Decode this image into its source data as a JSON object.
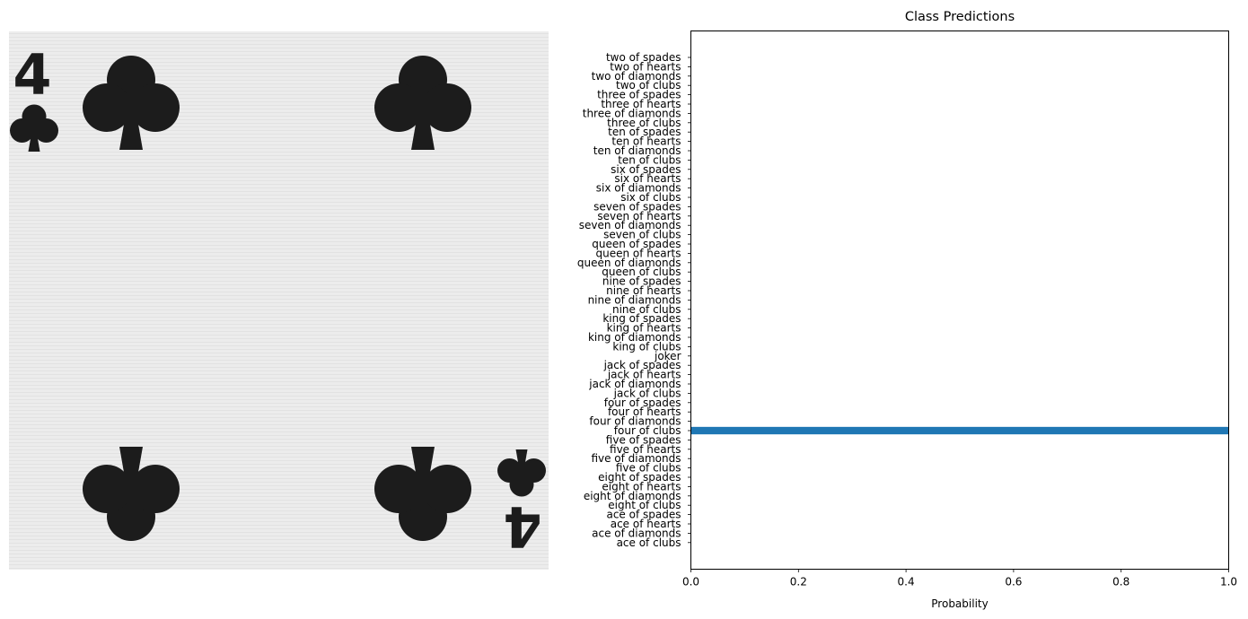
{
  "card_image": {
    "rank": "4",
    "colors": {
      "ink": "#1c1c1c",
      "paper": "#ececec"
    }
  },
  "chart_data": {
    "type": "bar",
    "orientation": "horizontal",
    "title": "Class Predictions",
    "xlabel": "Probability",
    "ylabel": "",
    "xlim": [
      0,
      1
    ],
    "xticks": [
      "0.0",
      "0.2",
      "0.4",
      "0.6",
      "0.8",
      "1.0"
    ],
    "grid": false,
    "color": "#1f77b4",
    "categories": [
      "two of spades",
      "two of hearts",
      "two of diamonds",
      "two of clubs",
      "three of spades",
      "three of hearts",
      "three of diamonds",
      "three of clubs",
      "ten of spades",
      "ten of hearts",
      "ten of diamonds",
      "ten of clubs",
      "six of spades",
      "six of hearts",
      "six of diamonds",
      "six of clubs",
      "seven of spades",
      "seven of hearts",
      "seven of diamonds",
      "seven of clubs",
      "queen of spades",
      "queen of hearts",
      "queen of diamonds",
      "queen of clubs",
      "nine of spades",
      "nine of hearts",
      "nine of diamonds",
      "nine of clubs",
      "king of spades",
      "king of hearts",
      "king of diamonds",
      "king of clubs",
      "joker",
      "jack of spades",
      "jack of hearts",
      "jack of diamonds",
      "jack of clubs",
      "four of spades",
      "four of hearts",
      "four of diamonds",
      "four of clubs",
      "five of spades",
      "five of hearts",
      "five of diamonds",
      "five of clubs",
      "eight of spades",
      "eight of hearts",
      "eight of diamonds",
      "eight of clubs",
      "ace of spades",
      "ace of hearts",
      "ace of diamonds",
      "ace of clubs"
    ],
    "values": [
      0,
      0,
      0,
      0,
      0,
      0,
      0,
      0,
      0,
      0,
      0,
      0,
      0,
      0,
      0,
      0,
      0,
      0,
      0,
      0,
      0,
      0,
      0,
      0,
      0,
      0,
      0,
      0,
      0,
      0,
      0,
      0,
      0,
      0,
      0,
      0,
      0,
      0,
      0,
      0,
      1.0,
      0,
      0,
      0,
      0,
      0,
      0,
      0,
      0,
      0,
      0,
      0,
      0
    ]
  }
}
